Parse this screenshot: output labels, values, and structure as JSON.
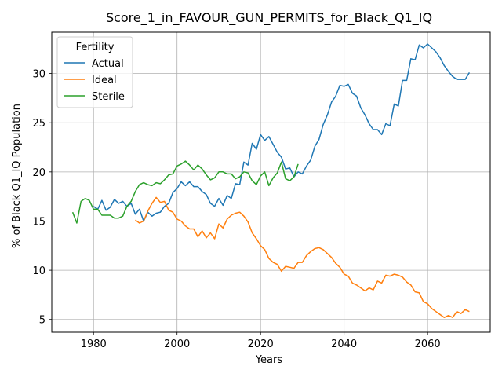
{
  "chart_data": {
    "type": "line",
    "title": "Score_1_in_FAVOUR_GUN_PERMITS_for_Black_Q1_IQ",
    "xlabel": "Years",
    "ylabel": "% of Black Q1_IQ Population",
    "xlim": [
      1970,
      2075
    ],
    "ylim": [
      3.7,
      34.2
    ],
    "xticks": [
      1980,
      2000,
      2020,
      2040,
      2060
    ],
    "yticks": [
      5,
      10,
      15,
      20,
      25,
      30
    ],
    "grid": true,
    "legend": {
      "title": "Fertility",
      "placement": "top-left"
    },
    "series": [
      {
        "name": "Actual",
        "color": "#1f77b4",
        "x": [
          1980,
          1981,
          1982,
          1983,
          1984,
          1985,
          1986,
          1987,
          1988,
          1989,
          1990,
          1991,
          1992,
          1993,
          1994,
          1995,
          1996,
          1997,
          1998,
          1999,
          2000,
          2001,
          2002,
          2003,
          2004,
          2005,
          2006,
          2007,
          2008,
          2009,
          2010,
          2011,
          2012,
          2013,
          2014,
          2015,
          2016,
          2017,
          2018,
          2019,
          2020,
          2021,
          2022,
          2023,
          2024,
          2025,
          2026,
          2027,
          2028,
          2029,
          2030,
          2031,
          2032,
          2033,
          2034,
          2035,
          2036,
          2037,
          2038,
          2039,
          2040,
          2041,
          2042,
          2043,
          2044,
          2045,
          2046,
          2047,
          2048,
          2049,
          2050,
          2051,
          2052,
          2053,
          2054,
          2055,
          2056,
          2057,
          2058,
          2059,
          2060,
          2061,
          2062,
          2063,
          2064,
          2065,
          2066,
          2067,
          2068,
          2069,
          2070
        ],
        "values": [
          16.5,
          16.2,
          17.1,
          16.1,
          16.4,
          17.2,
          16.8,
          17.0,
          16.5,
          16.8,
          15.7,
          16.2,
          15.0,
          15.9,
          15.5,
          15.8,
          15.9,
          16.5,
          16.8,
          17.9,
          18.3,
          19.0,
          18.6,
          19.0,
          18.5,
          18.5,
          18.0,
          17.7,
          16.8,
          16.5,
          17.3,
          16.6,
          17.6,
          17.3,
          18.8,
          18.7,
          21.0,
          20.7,
          22.9,
          22.3,
          23.8,
          23.2,
          23.6,
          22.8,
          22.0,
          21.5,
          20.3,
          20.4,
          19.5,
          20.0,
          19.8,
          20.6,
          21.2,
          22.6,
          23.3,
          24.8,
          25.8,
          27.1,
          27.7,
          28.8,
          28.7,
          28.9,
          28.0,
          27.7,
          26.5,
          25.8,
          24.9,
          24.3,
          24.3,
          23.8,
          24.9,
          24.7,
          26.9,
          26.7,
          29.3,
          29.3,
          31.5,
          31.4,
          32.9,
          32.6,
          33.0,
          32.6,
          32.2,
          31.6,
          30.8,
          30.2,
          29.7,
          29.4,
          29.4,
          29.4,
          30.1
        ]
      },
      {
        "name": "Ideal",
        "color": "#ff7f0e",
        "x": [
          1990,
          1991,
          1992,
          1993,
          1994,
          1995,
          1996,
          1997,
          1998,
          1999,
          2000,
          2001,
          2002,
          2003,
          2004,
          2005,
          2006,
          2007,
          2008,
          2009,
          2010,
          2011,
          2012,
          2013,
          2014,
          2015,
          2016,
          2017,
          2018,
          2019,
          2020,
          2021,
          2022,
          2023,
          2024,
          2025,
          2026,
          2027,
          2028,
          2029,
          2030,
          2031,
          2032,
          2033,
          2034,
          2035,
          2036,
          2037,
          2038,
          2039,
          2040,
          2041,
          2042,
          2043,
          2044,
          2045,
          2046,
          2047,
          2048,
          2049,
          2050,
          2051,
          2052,
          2053,
          2054,
          2055,
          2056,
          2057,
          2058,
          2059,
          2060,
          2061,
          2062,
          2063,
          2064,
          2065,
          2066,
          2067,
          2068,
          2069,
          2070
        ],
        "values": [
          15.1,
          14.8,
          15.0,
          16.0,
          16.8,
          17.4,
          16.9,
          17.0,
          16.1,
          15.9,
          15.2,
          15.0,
          14.5,
          14.2,
          14.2,
          13.4,
          14.0,
          13.3,
          13.8,
          13.2,
          14.7,
          14.3,
          15.2,
          15.6,
          15.8,
          15.9,
          15.5,
          14.9,
          13.8,
          13.2,
          12.5,
          12.1,
          11.2,
          10.8,
          10.6,
          9.9,
          10.4,
          10.3,
          10.2,
          10.8,
          10.8,
          11.5,
          11.9,
          12.2,
          12.3,
          12.1,
          11.7,
          11.3,
          10.7,
          10.3,
          9.6,
          9.4,
          8.7,
          8.5,
          8.2,
          7.9,
          8.2,
          8.0,
          8.9,
          8.7,
          9.5,
          9.4,
          9.6,
          9.5,
          9.3,
          8.8,
          8.5,
          7.8,
          7.7,
          6.8,
          6.6,
          6.1,
          5.8,
          5.5,
          5.2,
          5.4,
          5.2,
          5.8,
          5.6,
          6.0,
          5.8
        ]
      },
      {
        "name": "Sterile",
        "color": "#2ca02c",
        "x": [
          1975,
          1976,
          1977,
          1978,
          1979,
          1980,
          1981,
          1982,
          1983,
          1984,
          1985,
          1986,
          1987,
          1988,
          1989,
          1990,
          1991,
          1992,
          1993,
          1994,
          1995,
          1996,
          1997,
          1998,
          1999,
          2000,
          2001,
          2002,
          2003,
          2004,
          2005,
          2006,
          2007,
          2008,
          2009,
          2010,
          2011,
          2012,
          2013,
          2014,
          2015,
          2016,
          2017,
          2018,
          2019,
          2020,
          2021,
          2022,
          2023,
          2024,
          2025,
          2026,
          2027,
          2028,
          2029
        ],
        "values": [
          15.9,
          14.8,
          17.0,
          17.3,
          17.1,
          16.2,
          16.2,
          15.6,
          15.6,
          15.6,
          15.3,
          15.3,
          15.5,
          16.5,
          17.0,
          18.0,
          18.7,
          18.9,
          18.7,
          18.6,
          18.9,
          18.8,
          19.2,
          19.7,
          19.8,
          20.6,
          20.8,
          21.1,
          20.7,
          20.2,
          20.7,
          20.3,
          19.7,
          19.2,
          19.4,
          20.0,
          20.0,
          19.8,
          19.8,
          19.3,
          19.5,
          20.0,
          19.9,
          19.1,
          18.7,
          19.6,
          20.0,
          18.6,
          19.4,
          19.9,
          21.0,
          19.3,
          19.1,
          19.5,
          20.8
        ]
      }
    ]
  }
}
